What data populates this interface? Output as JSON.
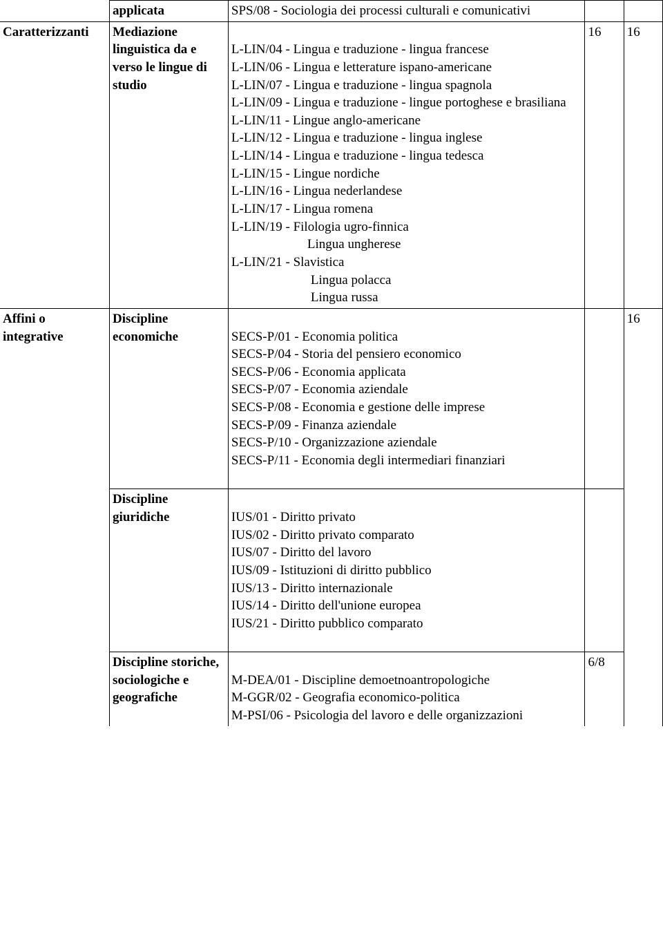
{
  "table": {
    "row0": {
      "c1": "",
      "c2": "applicata",
      "c3": "SPS/08 - Sociologia dei processi culturali e comunicativi",
      "c4": "",
      "c5": ""
    },
    "row1": {
      "c1": "Caratterizzanti",
      "c2": "Mediazione linguistica da e verso le lingue di studio",
      "c3_lines": {
        "l0": "",
        "l1": "L-LIN/04 - Lingua e traduzione - lingua francese",
        "l2": "L-LIN/06 - Lingua e letterature ispano-americane",
        "l3": "L-LIN/07 - Lingua e traduzione - lingua spagnola",
        "l4": "L-LIN/09 - Lingua e traduzione - lingue portoghese e brasiliana",
        "l5": "L-LIN/11 - Lingue  anglo-americane",
        "l6": "L-LIN/12 - Lingua e traduzione - lingua inglese",
        "l7": "L-LIN/14 - Lingua e traduzione - lingua tedesca",
        "l8": "L-LIN/15 - Lingue  nordiche",
        "l9": "L-LIN/16 - Lingua  nederlandese",
        "l10": "L-LIN/17 - Lingua  romena",
        "l11": "L-LIN/19 - Filologia ugro-finnica",
        "l11b": "Lingua ungherese",
        "l12": " L-LIN/21 - Slavistica",
        "l12b": "Lingua polacca",
        "l12c": "Lingua russa"
      },
      "c4": "16",
      "c5": "16"
    },
    "row2": {
      "c1": "Affini o integrative",
      "c2": "Discipline economiche",
      "c3_lines": {
        "l0": "",
        "l1": "SECS-P/01 - Economia politica",
        "l2": " SECS-P/04 - Storia del pensiero economico",
        "l3": "SECS-P/06 - Economia applicata",
        "l4": "SECS-P/07 - Economia aziendale",
        "l5": "SECS-P/08 - Economia e gestione delle imprese",
        "l6": "SECS-P/09 - Finanza aziendale",
        "l7": "SECS-P/10 - Organizzazione aziendale",
        "l8": "SECS-P/11 - Economia degli intermediari finanziari"
      },
      "c4": "",
      "c5": "16"
    },
    "row3": {
      "c2": "Discipline giuridiche",
      "c3_lines": {
        "l0": "",
        "l1": "IUS/01 - Diritto privato",
        "l2": "IUS/02 - Diritto privato comparato",
        "l3": "IUS/07 - Diritto del lavoro",
        "l4": "IUS/09 - Istituzioni di diritto pubblico",
        "l5": "IUS/13 - Diritto internazionale",
        "l6": "IUS/14 - Diritto dell'unione europea",
        "l7": "IUS/21 - Diritto pubblico comparato"
      },
      "c4": ""
    },
    "row4": {
      "c2": "Discipline storiche, sociologiche e geografiche",
      "c3_lines": {
        "l0": "",
        "l1": "M-DEA/01 - Discipline demoetnoantropologiche",
        "l2": "M-GGR/02 - Geografia economico-politica",
        "l3": "M-PSI/06 - Psicologia del lavoro e delle organizzazioni"
      },
      "c4": "6/8"
    }
  }
}
